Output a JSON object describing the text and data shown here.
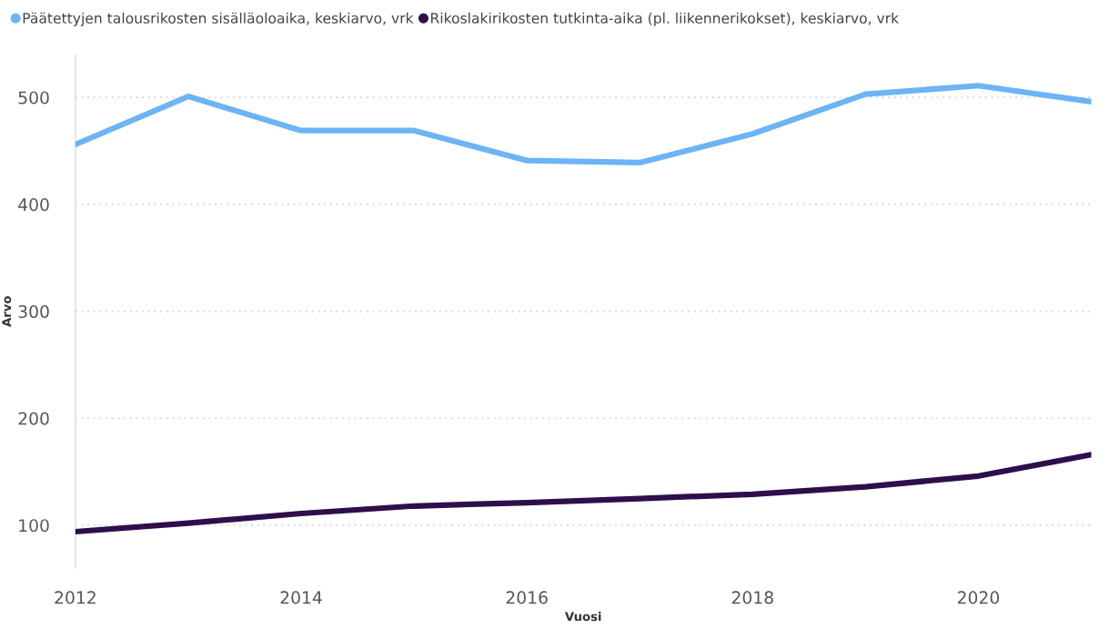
{
  "chart_data": {
    "type": "line",
    "xlabel": "Vuosi",
    "ylabel": "Arvo",
    "x": [
      2012,
      2013,
      2014,
      2015,
      2016,
      2017,
      2018,
      2019,
      2020,
      2021
    ],
    "series": [
      {
        "name": "Päätettyjen talousrikosten sisälläoloaika, keskiarvo, vrk",
        "color": "#6cb4f5",
        "values": [
          456,
          501,
          469,
          469,
          441,
          439,
          466,
          503,
          511,
          496
        ]
      },
      {
        "name": "Rikoslakirikosten tutkinta-aika (pl. liikennerikokset), keskiarvo, vrk",
        "color": "#2e0f4b",
        "values": [
          94,
          102,
          111,
          118,
          121,
          125,
          129,
          136,
          146,
          166
        ]
      }
    ],
    "xlim": [
      2012,
      2021
    ],
    "xticks": [
      2012,
      2014,
      2016,
      2018,
      2020
    ],
    "ylim": [
      60,
      540
    ],
    "yticks": [
      100,
      200,
      300,
      400,
      500
    ],
    "grid": "y",
    "legend": "top left",
    "marker": "none",
    "line_style": "solid"
  }
}
